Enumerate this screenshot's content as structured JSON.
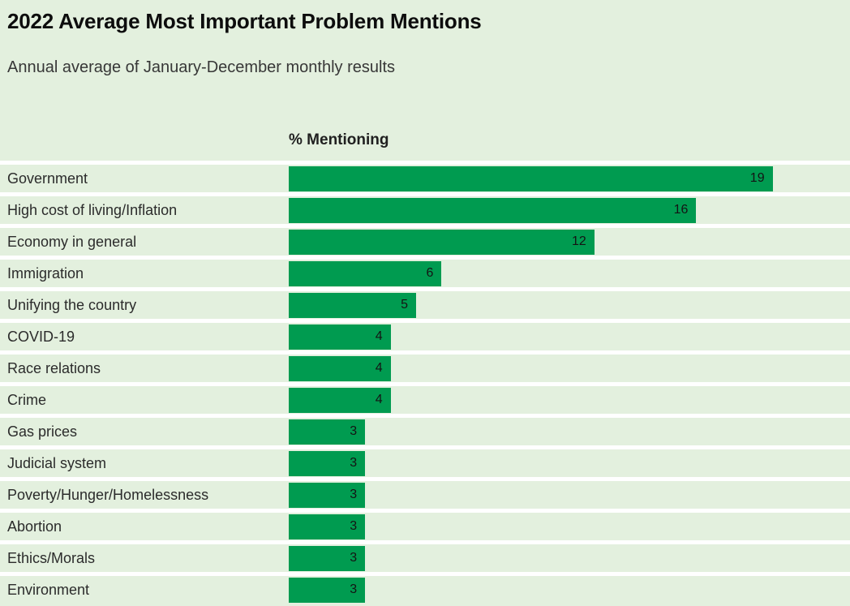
{
  "title": "2022 Average Most Important Problem Mentions",
  "subtitle": "Annual average of January-December monthly results",
  "chart_data": {
    "type": "bar",
    "orientation": "horizontal",
    "title": "2022 Average Most Important Problem Mentions",
    "subtitle": "Annual average of January-December monthly results",
    "value_axis_label": "% Mentioning",
    "categories": [
      "Government",
      "High cost of living/Inflation",
      "Economy in general",
      "Immigration",
      "Unifying the country",
      "COVID-19",
      "Race relations",
      "Crime",
      "Gas prices",
      "Judicial system",
      "Poverty/Hunger/Homelessness",
      "Abortion",
      "Ethics/Morals",
      "Environment"
    ],
    "values": [
      19,
      16,
      12,
      6,
      5,
      4,
      4,
      4,
      3,
      3,
      3,
      3,
      3,
      3
    ],
    "data_labels_shown": true,
    "xlim": [
      0,
      22
    ],
    "grid": false,
    "legend": false,
    "colors": {
      "bar": "#009b50",
      "background": "#e3f0de",
      "row_separator": "#ffffff",
      "value_label_text": "#141414",
      "category_label_text": "#2b2b2b"
    }
  }
}
